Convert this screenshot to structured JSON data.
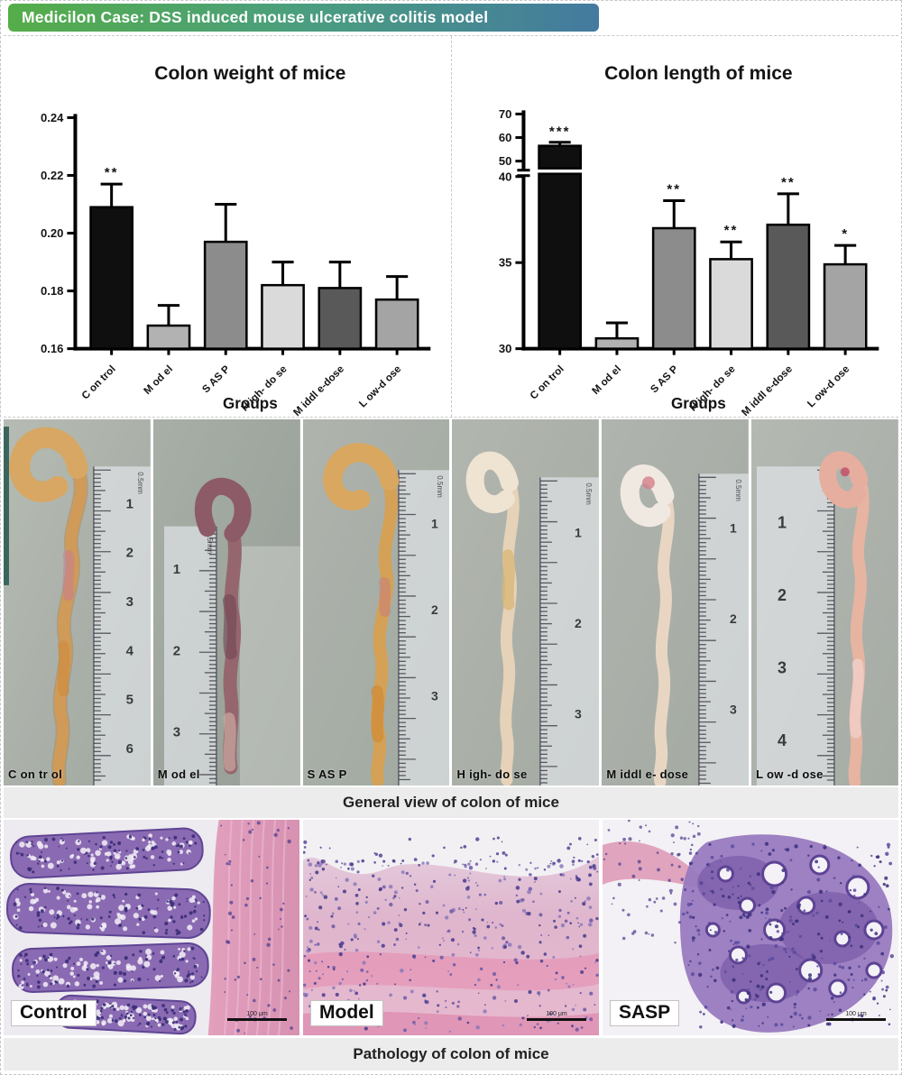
{
  "banner": {
    "title": "Medicilon Case: DSS induced mouse ulcerative colitis model"
  },
  "captions": {
    "general_view": "General view of colon of mice",
    "pathology": "Pathology of colon of mice"
  },
  "chart_data": [
    {
      "type": "bar",
      "title": "Colon weight of mice",
      "xlabel": "Groups",
      "categories": [
        "C on trol",
        "M od el",
        "S AS P",
        "H igh- do se",
        "M iddl e-dose",
        "L ow-d ose"
      ],
      "values": [
        0.209,
        0.168,
        0.197,
        0.182,
        0.181,
        0.177
      ],
      "error_high": [
        0.217,
        0.175,
        0.21,
        0.19,
        0.19,
        0.185
      ],
      "significance": [
        "**",
        "",
        "",
        "",
        "",
        ""
      ],
      "ylim": [
        0.16,
        0.24
      ],
      "yticks": [
        0.16,
        0.18,
        0.2,
        0.22,
        0.24
      ],
      "ytick_labels": [
        "0.16",
        "0.18",
        "0.20",
        "0.22",
        "0.24"
      ],
      "bar_colors": [
        "#0f0f0f",
        "#b2b2b2",
        "#8c8c8c",
        "#dadada",
        "#595959",
        "#a4a4a4"
      ],
      "grid": false,
      "legend": "none"
    },
    {
      "type": "bar",
      "title": "Colon length of mice",
      "xlabel": "Groups",
      "categories": [
        "C on trol",
        "M od el",
        "S AS P",
        "H igh- do se",
        "M iddl e-dose",
        "L ow-d ose"
      ],
      "values": [
        56.5,
        30.6,
        37.0,
        35.2,
        37.2,
        34.9
      ],
      "error_high": [
        58.0,
        31.5,
        38.6,
        36.2,
        39.0,
        36.0
      ],
      "significance": [
        "***",
        "",
        "**",
        "**",
        "**",
        "*"
      ],
      "axis_break": true,
      "lower_segment": {
        "range": [
          30,
          40
        ],
        "ticks": [
          30,
          35,
          40
        ],
        "tick_labels": [
          "30",
          "35",
          "40"
        ]
      },
      "upper_segment": {
        "range": [
          50,
          70
        ],
        "ticks": [
          50,
          60,
          70
        ],
        "tick_labels": [
          "50",
          "60",
          "70"
        ]
      },
      "bar_colors": [
        "#0f0f0f",
        "#b2b2b2",
        "#8c8c8c",
        "#dadada",
        "#595959",
        "#a4a4a4"
      ],
      "grid": false,
      "legend": "none"
    }
  ],
  "photos": {
    "caption": "General view of colon of mice",
    "ruler_unit": "0.5mm",
    "items": [
      {
        "label": "C on tr ol",
        "colon_color": "#d09a58",
        "ruler_numbers": [
          "1",
          "2",
          "3",
          "4",
          "5",
          "6"
        ]
      },
      {
        "label": "M od el",
        "colon_color": "#96666f",
        "ruler_numbers": [
          "1",
          "2",
          "3"
        ]
      },
      {
        "label": "S AS P",
        "colon_color": "#d4a156",
        "ruler_numbers": [
          "1",
          "2",
          "3"
        ]
      },
      {
        "label": "H igh- do se",
        "colon_color": "#e6d2b8",
        "ruler_numbers": [
          "1",
          "2",
          "3"
        ]
      },
      {
        "label": "M iddl e- dose",
        "colon_color": "#e9d6c2",
        "ruler_numbers": [
          "1",
          "2",
          "3"
        ]
      },
      {
        "label": "L ow -d ose",
        "colon_color": "#e7b4a2",
        "ruler_numbers": [
          "1",
          "2",
          "3",
          "4"
        ]
      }
    ]
  },
  "pathology": {
    "caption": "Pathology of colon of mice",
    "scale_label": "100 μm",
    "items": [
      {
        "label": "Control"
      },
      {
        "label": "Model"
      },
      {
        "label": "SASP"
      }
    ]
  }
}
